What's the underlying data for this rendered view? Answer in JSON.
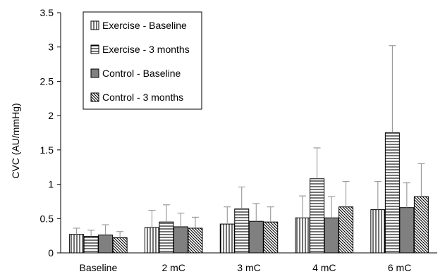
{
  "chart_data": {
    "type": "bar",
    "categories": [
      "Baseline",
      "2 mC",
      "3 mC",
      "4 mC",
      "6 mC"
    ],
    "ylabel": "CVC (AU/mmHg)",
    "xlabel": "",
    "ylim": [
      0,
      3.5
    ],
    "yticks": [
      0,
      0.5,
      1,
      1.5,
      2,
      2.5,
      3,
      3.5
    ],
    "ytick_labels": [
      "0",
      "0.5",
      "1",
      "1.5",
      "2",
      "2.5",
      "3",
      "3.5"
    ],
    "grid": false,
    "legend": "top-left",
    "series": [
      {
        "name": "Exercise - Baseline",
        "pattern": "vertical",
        "values": [
          0.27,
          0.37,
          0.42,
          0.51,
          0.63
        ],
        "errors": [
          0.09,
          0.25,
          0.25,
          0.32,
          0.41
        ]
      },
      {
        "name": "Exercise - 3 months",
        "pattern": "horizontal",
        "values": [
          0.24,
          0.45,
          0.64,
          1.08,
          1.75
        ],
        "errors": [
          0.09,
          0.25,
          0.32,
          0.45,
          1.27
        ]
      },
      {
        "name": "Control - Baseline",
        "pattern": "solid-gray",
        "values": [
          0.26,
          0.38,
          0.46,
          0.51,
          0.66
        ],
        "errors": [
          0.15,
          0.2,
          0.26,
          0.31,
          0.36
        ]
      },
      {
        "name": "Control - 3 months",
        "pattern": "diagonal",
        "values": [
          0.22,
          0.36,
          0.45,
          0.67,
          0.82
        ],
        "errors": [
          0.09,
          0.16,
          0.22,
          0.37,
          0.48
        ]
      }
    ]
  }
}
